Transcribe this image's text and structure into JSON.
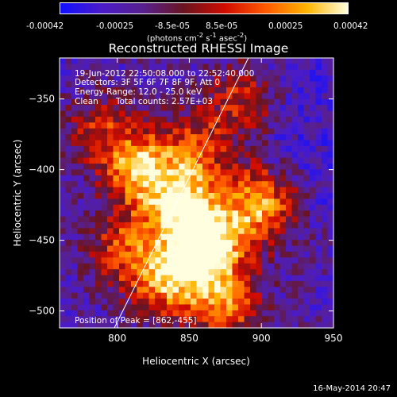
{
  "colorbar": {
    "ticks": [
      "-0.00042",
      "-0.00025",
      "-8.5e-05",
      "8.5e-05",
      "0.00025",
      "0.00042"
    ],
    "units_base": "(photons cm",
    "units_exp1": "-2",
    "units_mid": " s",
    "units_exp2": "-1",
    "units_mid2": " asec",
    "units_exp3": "-2",
    "units_end": ")",
    "colors": [
      "#1010ff",
      "#4b1bc8",
      "#58208e",
      "#6a1420",
      "#d00b00",
      "#ff5a00",
      "#ffb400",
      "#ffffe0"
    ]
  },
  "chart_data": {
    "type": "heatmap",
    "title": "Reconstructed RHESSI Image",
    "xlabel": "Heliocentric X (arcsec)",
    "ylabel": "Heliocentric Y (arcsec)",
    "xlim": [
      760,
      950
    ],
    "ylim": [
      -512,
      -321
    ],
    "xticks": [
      800,
      850,
      900,
      950
    ],
    "yticks": [
      -350,
      -400,
      -450,
      -500
    ],
    "xtick_labels": [
      "800",
      "850",
      "900",
      "950"
    ],
    "ytick_labels": [
      "−350",
      "−400",
      "−450",
      "−500"
    ],
    "colorbar_range": [
      -0.00042,
      0.00042
    ],
    "peak_position": [
      862,
      -455
    ],
    "limb_line": [
      [
        798,
        -512
      ],
      [
        891,
        -321
      ]
    ],
    "annotations": [
      "19-Jun-2012 22:50:08.000 to 22:52:40.000",
      "Detectors: 3F 5F 6F 7F 8F 9F, Att 0",
      "Energy Range: 12.0 - 25.0 keV",
      "Clean",
      "Total counts: 2.57E+03",
      "Position of Peak = [862,-455]"
    ]
  },
  "footer": {
    "timestamp": "16-May-2014 20:47"
  }
}
